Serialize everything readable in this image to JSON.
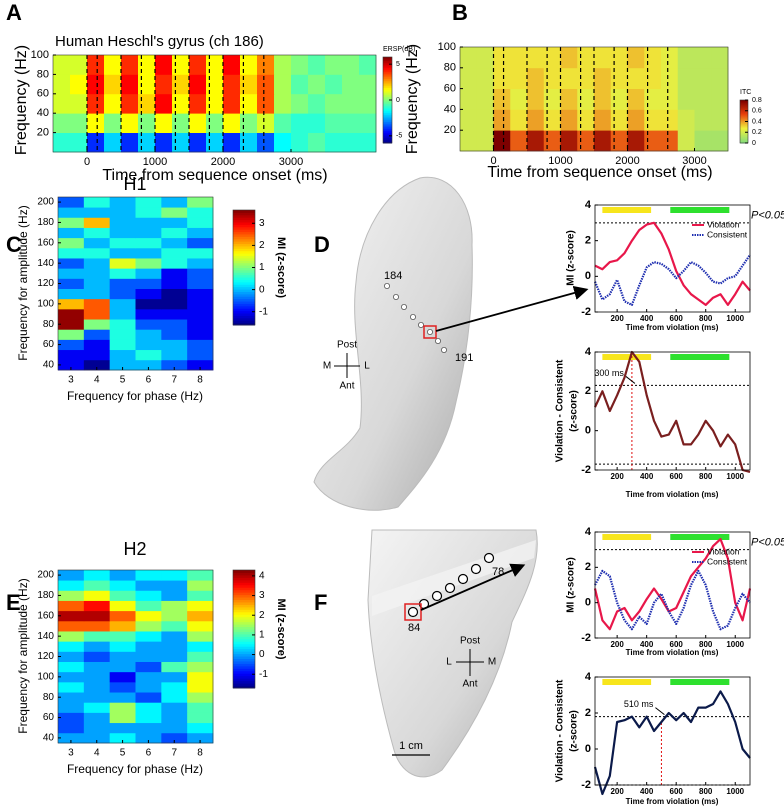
{
  "panel_labels": [
    "A",
    "B",
    "C",
    "D",
    "E",
    "F"
  ],
  "anatomy": {
    "D": {
      "electrodes": [
        "184",
        "191"
      ],
      "orientation": [
        "Post",
        "M",
        "L",
        "Ant"
      ]
    },
    "F": {
      "electrodes": [
        "78",
        "84"
      ],
      "orientation": [
        "Post",
        "L",
        "M",
        "Ant"
      ],
      "scale": "1 cm"
    }
  },
  "chart_data": [
    {
      "type": "heatmap",
      "panel": "A",
      "title": "Human Heschl's gyrus (ch 186)",
      "xlabel": "Time from sequence onset (ms)",
      "ylabel": "Frequency (Hz)",
      "colormap": "jet",
      "xlim": [
        -500,
        4250
      ],
      "ylim": [
        0,
        100
      ],
      "xticks": [
        0,
        1000,
        2000,
        3000
      ],
      "yticks": [
        20,
        40,
        60,
        80,
        100
      ],
      "x_edges": [
        -500,
        -250,
        0,
        250,
        500,
        750,
        1000,
        1250,
        1500,
        1750,
        2000,
        2250,
        2500,
        2750,
        3000,
        3250,
        3500,
        3750,
        4000,
        4250
      ],
      "y_edges": [
        0,
        20,
        40,
        60,
        80,
        100
      ],
      "z": [
        [
          -1,
          -1,
          -4,
          -2,
          -4,
          -2,
          -4,
          -2,
          -4,
          -2,
          -4,
          -2,
          -3.5,
          -1.5,
          -1,
          -0.5,
          -1,
          -1,
          -1
        ],
        [
          0,
          0,
          1.5,
          0,
          1.5,
          0,
          1.5,
          0,
          1.5,
          0,
          1.5,
          0,
          1,
          -0.5,
          -1,
          -1,
          -0.5,
          -0.5,
          -0.5
        ],
        [
          1,
          1,
          4,
          1.5,
          4,
          2,
          4.5,
          1.5,
          4,
          1.5,
          4,
          1.5,
          3.5,
          0.5,
          0,
          -0.5,
          0,
          0,
          0
        ],
        [
          1,
          1.5,
          4.5,
          2,
          4.5,
          1.5,
          4,
          2,
          4.5,
          1.5,
          4,
          2,
          3.5,
          0.5,
          -0.5,
          0,
          -0.5,
          0,
          0
        ],
        [
          1,
          1,
          4,
          1.5,
          4,
          1.5,
          4.5,
          1.5,
          4,
          1.5,
          4.5,
          1.5,
          3,
          0.5,
          0,
          -0.5,
          0,
          0,
          -0.5
        ]
      ],
      "vlines": [
        0,
        150,
        500,
        800,
        1000,
        1300,
        1500,
        1800,
        2000,
        2300,
        2600
      ],
      "colorbar": {
        "label": "ERSP(dB)",
        "lim": [
          -6,
          6
        ],
        "ticks": [
          5,
          0,
          -5
        ]
      }
    },
    {
      "type": "heatmap",
      "panel": "B",
      "xlabel": "Time from sequence onset (ms)",
      "ylabel": "Frequency (Hz)",
      "colormap": "green-yellow-red",
      "xlim": [
        -500,
        3500
      ],
      "ylim": [
        0,
        100
      ],
      "xticks": [
        0,
        1000,
        2000,
        3000
      ],
      "yticks": [
        20,
        40,
        60,
        80,
        100
      ],
      "x_edges": [
        -500,
        -250,
        0,
        250,
        500,
        750,
        1000,
        1250,
        1500,
        1750,
        2000,
        2250,
        2500,
        2750,
        3000,
        3250,
        3500
      ],
      "y_edges": [
        0,
        20,
        40,
        60,
        80,
        100
      ],
      "z": [
        [
          0.2,
          0.2,
          0.8,
          0.5,
          0.7,
          0.5,
          0.7,
          0.5,
          0.7,
          0.5,
          0.7,
          0.5,
          0.5,
          0.2,
          0.1,
          0.1
        ],
        [
          0.2,
          0.2,
          0.4,
          0.3,
          0.4,
          0.3,
          0.4,
          0.3,
          0.4,
          0.3,
          0.4,
          0.3,
          0.3,
          0.2,
          0.15,
          0.15
        ],
        [
          0.2,
          0.2,
          0.35,
          0.25,
          0.35,
          0.25,
          0.35,
          0.25,
          0.35,
          0.25,
          0.35,
          0.25,
          0.25,
          0.15,
          0.15,
          0.15
        ],
        [
          0.2,
          0.2,
          0.3,
          0.3,
          0.35,
          0.3,
          0.3,
          0.3,
          0.35,
          0.3,
          0.3,
          0.3,
          0.25,
          0.15,
          0.15,
          0.15
        ],
        [
          0.2,
          0.2,
          0.3,
          0.3,
          0.3,
          0.3,
          0.35,
          0.3,
          0.3,
          0.3,
          0.35,
          0.3,
          0.25,
          0.15,
          0.15,
          0.15
        ]
      ],
      "vlines": [
        0,
        150,
        500,
        800,
        1000,
        1300,
        1500,
        1800,
        2000,
        2300,
        2600
      ],
      "colorbar": {
        "label": "ITC",
        "lim": [
          0,
          0.8
        ],
        "ticks": [
          0.8,
          0.6,
          0.4,
          0.2,
          0
        ]
      }
    },
    {
      "type": "heatmap",
      "panel": "C",
      "title": "H1",
      "xlabel": "Frequency for phase (Hz)",
      "ylabel": "Frequency for amplitude (Hz)",
      "colormap": "jet",
      "xlim": [
        2.5,
        8.5
      ],
      "ylim": [
        35,
        205
      ],
      "xticks": [
        3,
        4,
        5,
        6,
        7,
        8
      ],
      "yticks": [
        40,
        60,
        80,
        100,
        120,
        140,
        160,
        180,
        200
      ],
      "x_edges": [
        2.5,
        3.5,
        4.5,
        5.5,
        6.5,
        7.5,
        8.5
      ],
      "y_edges": [
        35,
        45,
        55,
        65,
        75,
        85,
        95,
        105,
        115,
        125,
        135,
        145,
        155,
        165,
        175,
        185,
        195,
        205
      ],
      "z": [
        [
          -1,
          -1.5,
          0,
          0,
          -0.5,
          -1
        ],
        [
          -1,
          -1,
          0,
          0.5,
          0,
          -0.5
        ],
        [
          -0.5,
          -1,
          0.5,
          0,
          0,
          -0.5
        ],
        [
          1,
          -0.5,
          0.5,
          0,
          -0.5,
          -1
        ],
        [
          3.5,
          1,
          0.5,
          -0.5,
          -0.5,
          -1
        ],
        [
          3.5,
          2.5,
          0,
          -1,
          -1,
          -1
        ],
        [
          2,
          2.5,
          0,
          -1.5,
          -1.5,
          -1
        ],
        [
          0,
          0,
          -0.5,
          -1,
          -1.5,
          -1
        ],
        [
          -0.5,
          0,
          -0.5,
          -0.5,
          -1,
          -0.5
        ],
        [
          0,
          0,
          0.5,
          0,
          -1,
          -0.5
        ],
        [
          -0.5,
          0,
          1.5,
          1,
          0.5,
          0
        ],
        [
          0.5,
          0.5,
          0,
          0,
          0.5,
          0.5
        ],
        [
          1,
          0,
          0.5,
          0.5,
          0,
          -0.5
        ],
        [
          0,
          0.5,
          0,
          0,
          0.5,
          0
        ],
        [
          1,
          2,
          0,
          0,
          0,
          0.5
        ],
        [
          0,
          0,
          0,
          0.5,
          1,
          0.5
        ],
        [
          -0.5,
          0.5,
          0,
          0.5,
          0,
          1
        ]
      ],
      "colorbar": {
        "label": "MI (z-score)",
        "lim": [
          -1.6,
          3.6
        ],
        "ticks": [
          3,
          2,
          1,
          0,
          -1
        ]
      }
    },
    {
      "type": "line",
      "panel": "D",
      "xlabel": "Time from violation (ms)",
      "ylabel": [
        "MI (z-score)"
      ],
      "xlim": [
        50,
        1100
      ],
      "ylim": [
        -2,
        4
      ],
      "xticks": [
        200,
        400,
        600,
        800,
        1000
      ],
      "yticks": [
        -2,
        0,
        2,
        4
      ],
      "legend": "upper right",
      "x": [
        50,
        100,
        150,
        200,
        250,
        300,
        350,
        400,
        450,
        500,
        550,
        600,
        650,
        700,
        750,
        800,
        850,
        900,
        950,
        1000,
        1050,
        1100
      ],
      "series": [
        {
          "name": "Violation",
          "color": "#e8174a",
          "style": "solid",
          "values": [
            0.6,
            0.4,
            0.8,
            0.9,
            1.3,
            2.0,
            2.6,
            2.9,
            3.0,
            2.4,
            1.5,
            0.3,
            -0.5,
            -1.0,
            -1.3,
            -1.6,
            -1.2,
            -1.0,
            -1.6,
            -1.0,
            -0.3,
            -0.8
          ]
        },
        {
          "name": "Consistent",
          "color": "#1f2fb0",
          "style": "dotted",
          "values": [
            -0.3,
            -1.3,
            -1.0,
            -0.2,
            -1.4,
            -1.6,
            -0.5,
            0.5,
            0.8,
            0.7,
            0.4,
            -0.1,
            0.3,
            0.8,
            0.6,
            0.2,
            -0.3,
            -0.4,
            -0.1,
            0.0,
            0.6,
            1.2
          ]
        }
      ],
      "stimulus_bars": [
        {
          "start": 100,
          "end": 430,
          "color": "#f7e51c"
        },
        {
          "start": 560,
          "end": 960,
          "color": "#2ee02e"
        }
      ],
      "thresholds": [
        3
      ],
      "threshold_label": "P<0.05"
    },
    {
      "type": "line",
      "panel": "D",
      "xlabel": "Time from violation (ms)",
      "ylabel": [
        "Violation - Consistent",
        "(z-score)"
      ],
      "xlim": [
        50,
        1100
      ],
      "ylim": [
        -2,
        4
      ],
      "xticks": [
        200,
        400,
        600,
        800,
        1000
      ],
      "yticks": [
        -2,
        0,
        2,
        4
      ],
      "x": [
        50,
        100,
        150,
        200,
        250,
        300,
        350,
        400,
        450,
        500,
        550,
        600,
        650,
        700,
        750,
        800,
        850,
        900,
        950,
        1000,
        1050,
        1100
      ],
      "series": [
        {
          "color": "#7a1f1f",
          "style": "solid",
          "values": [
            1.2,
            2.0,
            1.0,
            1.8,
            2.7,
            4.0,
            3.5,
            1.8,
            0.5,
            -0.3,
            -0.2,
            0.5,
            -0.7,
            -0.7,
            -0.2,
            0.5,
            0.0,
            -0.8,
            -0.2,
            -0.7,
            -2.0,
            -2.1
          ]
        }
      ],
      "stimulus_bars": [
        {
          "start": 100,
          "end": 430,
          "color": "#f7e51c"
        },
        {
          "start": 560,
          "end": 960,
          "color": "#2ee02e"
        }
      ],
      "thresholds": [
        2.3,
        -1.7
      ],
      "annotation": {
        "text": "300 ms",
        "x": 300
      }
    },
    {
      "type": "heatmap",
      "panel": "E",
      "title": "H2",
      "xlabel": "Frequency for phase (Hz)",
      "ylabel": "Frequency for amplitude (Hz)",
      "colormap": "jet",
      "xlim": [
        2.5,
        8.5
      ],
      "ylim": [
        35,
        205
      ],
      "xticks": [
        3,
        4,
        5,
        6,
        7,
        8
      ],
      "yticks": [
        40,
        60,
        80,
        100,
        120,
        140,
        160,
        180,
        200
      ],
      "x_edges": [
        2.5,
        3.5,
        4.5,
        5.5,
        6.5,
        7.5,
        8.5
      ],
      "y_edges": [
        35,
        45,
        55,
        65,
        75,
        85,
        95,
        105,
        115,
        125,
        135,
        145,
        155,
        165,
        175,
        185,
        195,
        205
      ],
      "z": [
        [
          0,
          0,
          0.5,
          0,
          -0.5,
          0
        ],
        [
          -0.5,
          0,
          0,
          0,
          0,
          0.5
        ],
        [
          -0.5,
          0,
          1.5,
          0.5,
          0,
          1
        ],
        [
          0,
          0.5,
          1.5,
          0.5,
          0,
          1
        ],
        [
          0,
          0,
          0,
          -0.5,
          0.5,
          1.5
        ],
        [
          0.5,
          0,
          -0.5,
          0,
          0.5,
          2
        ],
        [
          0,
          0,
          -1,
          0,
          0,
          2
        ],
        [
          0.5,
          0,
          0,
          -0.5,
          1,
          1.5
        ],
        [
          0,
          -0.5,
          0,
          0,
          0,
          1
        ],
        [
          0.5,
          0,
          0.5,
          0,
          0,
          0.5
        ],
        [
          1.5,
          1,
          1,
          0.5,
          0,
          1.5
        ],
        [
          3,
          3,
          2.5,
          1.5,
          1,
          2
        ],
        [
          4,
          4,
          3,
          2,
          1.5,
          2.5
        ],
        [
          3,
          3.5,
          2,
          1,
          1.5,
          2
        ],
        [
          1.5,
          2,
          1,
          0.5,
          0,
          1
        ],
        [
          0.5,
          1,
          0.5,
          0,
          0,
          1.5
        ],
        [
          0,
          0.5,
          0,
          0.5,
          0.5,
          1
        ]
      ],
      "colorbar": {
        "label": "MI (z-score)",
        "lim": [
          -1.7,
          4.3
        ],
        "ticks": [
          4,
          3,
          2,
          1,
          0,
          -1
        ]
      }
    },
    {
      "type": "line",
      "panel": "F",
      "xlabel": "Time from violation (ms)",
      "ylabel": [
        "MI (z-score)"
      ],
      "xlim": [
        50,
        1100
      ],
      "ylim": [
        -2,
        4
      ],
      "xticks": [
        200,
        400,
        600,
        800,
        1000
      ],
      "yticks": [
        -2,
        0,
        2,
        4
      ],
      "legend": "upper right",
      "x": [
        50,
        100,
        150,
        200,
        250,
        300,
        350,
        400,
        450,
        500,
        550,
        600,
        650,
        700,
        750,
        800,
        850,
        900,
        950,
        1000,
        1050,
        1100
      ],
      "series": [
        {
          "name": "Violation",
          "color": "#e8174a",
          "style": "solid",
          "values": [
            0.8,
            -1.0,
            -1.5,
            -0.5,
            -0.3,
            -1.0,
            -0.5,
            0.2,
            0.8,
            0.2,
            -0.5,
            -0.3,
            0.6,
            1.5,
            2.0,
            2.5,
            3.2,
            3.6,
            2.5,
            0.0,
            -1.0,
            0.8
          ]
        },
        {
          "name": "Consistent",
          "color": "#1f2fb0",
          "style": "dotted",
          "values": [
            1.0,
            1.8,
            1.5,
            0.0,
            -1.0,
            -1.5,
            -0.8,
            -1.2,
            0.0,
            0.5,
            -0.5,
            -1.2,
            -0.3,
            1.0,
            1.8,
            1.0,
            -0.5,
            -1.5,
            -1.3,
            -0.3,
            0.5,
            0.0
          ]
        }
      ],
      "stimulus_bars": [
        {
          "start": 100,
          "end": 430,
          "color": "#f7e51c"
        },
        {
          "start": 560,
          "end": 960,
          "color": "#2ee02e"
        }
      ],
      "thresholds": [
        3
      ],
      "threshold_label": "P<0.05"
    },
    {
      "type": "line",
      "panel": "F",
      "xlabel": "Time from violation (ms)",
      "ylabel": [
        "Violation - Consistent",
        "(z-score)"
      ],
      "xlim": [
        50,
        1100
      ],
      "ylim": [
        -2,
        4
      ],
      "xticks": [
        200,
        400,
        600,
        800,
        1000
      ],
      "yticks": [
        -2,
        0,
        2,
        4
      ],
      "x": [
        50,
        100,
        150,
        200,
        250,
        300,
        350,
        400,
        450,
        500,
        550,
        600,
        650,
        700,
        750,
        800,
        850,
        900,
        950,
        1000,
        1050,
        1100
      ],
      "series": [
        {
          "color": "#0b1a4a",
          "style": "solid",
          "values": [
            -1.0,
            -2.5,
            -1.5,
            1.5,
            1.6,
            1.8,
            1.2,
            1.8,
            1.0,
            1.5,
            2.0,
            1.6,
            2.0,
            1.5,
            2.3,
            2.3,
            2.5,
            3.2,
            2.5,
            1.5,
            0.0,
            -0.5
          ]
        }
      ],
      "stimulus_bars": [
        {
          "start": 100,
          "end": 430,
          "color": "#f7e51c"
        },
        {
          "start": 560,
          "end": 960,
          "color": "#2ee02e"
        }
      ],
      "thresholds": [
        1.8,
        -2
      ],
      "annotation": {
        "text": "510 ms",
        "x": 500
      }
    }
  ]
}
